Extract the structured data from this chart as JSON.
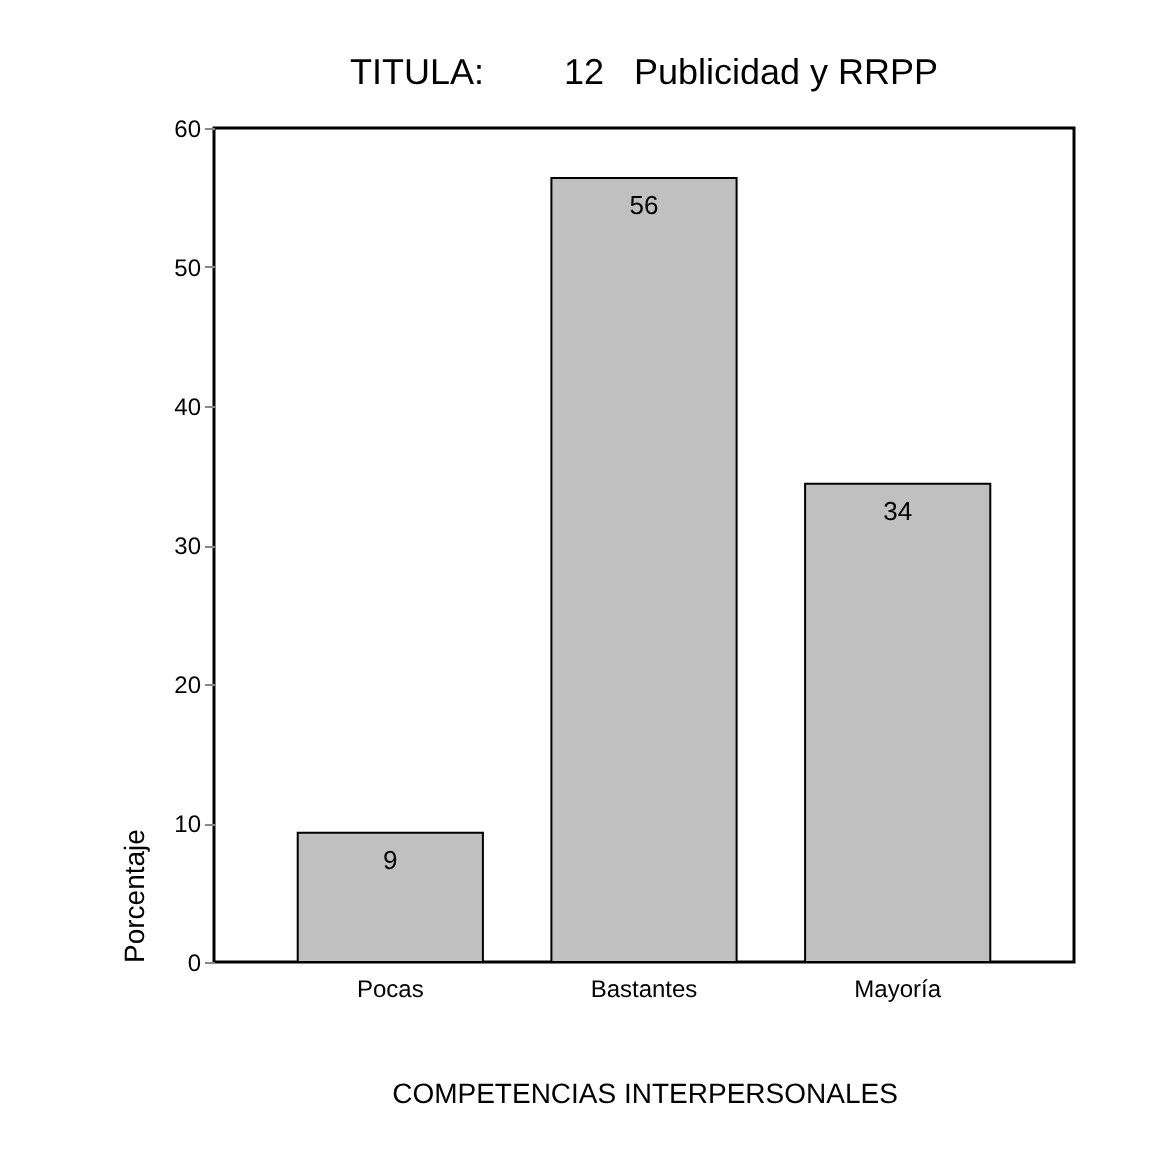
{
  "chart_data": {
    "type": "bar",
    "title": "TITULA:        12   Publicidad y RRPP",
    "xlabel": "COMPETENCIAS INTERPERSONALES",
    "ylabel": "Porcentaje",
    "categories": [
      "Pocas",
      "Bastantes",
      "Mayoría"
    ],
    "values": [
      9.3,
      56.4,
      34.4
    ],
    "value_labels": [
      "9",
      "56",
      "34"
    ],
    "color": "#c0c0c0",
    "ylim": [
      0,
      60
    ],
    "yticks": [
      0,
      10,
      20,
      30,
      40,
      50,
      60
    ],
    "grid": false
  }
}
